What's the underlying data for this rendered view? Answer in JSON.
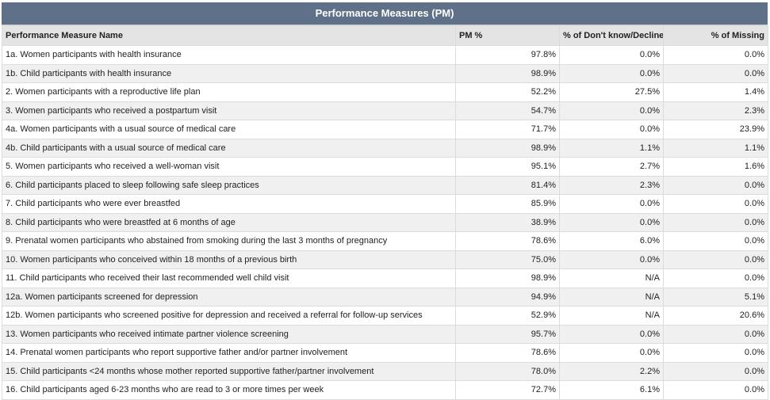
{
  "title": "Performance Measures (PM)",
  "columns": [
    "Performance Measure Name",
    "PM %",
    "% of Don't know/Declined",
    "% of Missing"
  ],
  "rows": [
    {
      "name": "1a. Women participants with health insurance",
      "pm": "97.8%",
      "dk": "0.0%",
      "missing": "0.0%"
    },
    {
      "name": "1b. Child participants with health insurance",
      "pm": "98.9%",
      "dk": "0.0%",
      "missing": "0.0%"
    },
    {
      "name": "2. Women participants with a reproductive life plan",
      "pm": "52.2%",
      "dk": "27.5%",
      "missing": "1.4%"
    },
    {
      "name": "3. Women participants who received a postpartum visit",
      "pm": "54.7%",
      "dk": "0.0%",
      "missing": "2.3%"
    },
    {
      "name": "4a. Women participants with a usual source of medical care",
      "pm": "71.7%",
      "dk": "0.0%",
      "missing": "23.9%"
    },
    {
      "name": "4b. Child participants with a usual source of medical care",
      "pm": "98.9%",
      "dk": "1.1%",
      "missing": "1.1%"
    },
    {
      "name": "5. Women participants who received a well-woman visit",
      "pm": "95.1%",
      "dk": "2.7%",
      "missing": "1.6%"
    },
    {
      "name": "6. Child participants placed to sleep following safe sleep practices",
      "pm": "81.4%",
      "dk": "2.3%",
      "missing": "0.0%"
    },
    {
      "name": "7. Child participants who were ever breastfed",
      "pm": "85.9%",
      "dk": "0.0%",
      "missing": "0.0%"
    },
    {
      "name": "8. Child participants who were breastfed at 6 months of age",
      "pm": "38.9%",
      "dk": "0.0%",
      "missing": "0.0%"
    },
    {
      "name": "9. Prenatal women participants who abstained from smoking during the last 3 months of pregnancy",
      "pm": "78.6%",
      "dk": "6.0%",
      "missing": "0.0%"
    },
    {
      "name": "10. Women participants who conceived within 18 months of a previous birth",
      "pm": "75.0%",
      "dk": "0.0%",
      "missing": "0.0%"
    },
    {
      "name": "11. Child participants who received their last recommended well child visit",
      "pm": "98.9%",
      "dk": "N/A",
      "missing": "0.0%"
    },
    {
      "name": "12a. Women participants screened for depression",
      "pm": "94.9%",
      "dk": "N/A",
      "missing": "5.1%"
    },
    {
      "name": "12b. Women participants who screened positive for depression and received a referral for follow-up services",
      "pm": "52.9%",
      "dk": "N/A",
      "missing": "20.6%"
    },
    {
      "name": "13. Women participants who received intimate partner violence screening",
      "pm": "95.7%",
      "dk": "0.0%",
      "missing": "0.0%"
    },
    {
      "name": "14. Prenatal women participants who report supportive father and/or partner involvement",
      "pm": "78.6%",
      "dk": "0.0%",
      "missing": "0.0%"
    },
    {
      "name": "15. Child participants <24 months whose mother reported supportive father/partner involvement",
      "pm": "78.0%",
      "dk": "2.2%",
      "missing": "0.0%"
    },
    {
      "name": "16. Child participants aged 6-23 months who are read to 3 or more times per week",
      "pm": "72.7%",
      "dk": "6.1%",
      "missing": "0.0%"
    }
  ]
}
